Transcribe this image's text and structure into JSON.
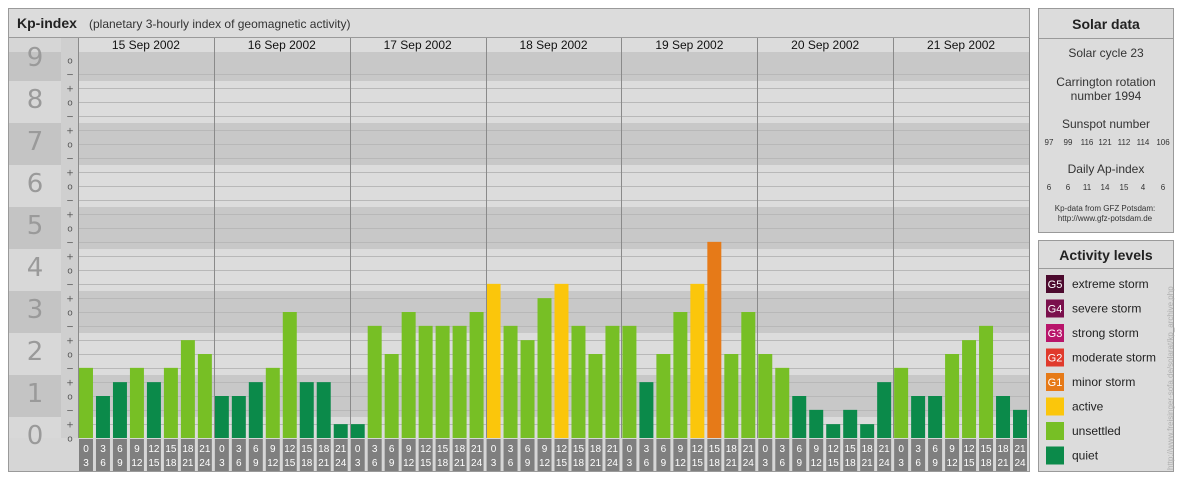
{
  "title": "Kp-index",
  "subtitle": "(planetary 3-hourly index of geomagnetic activity)",
  "credit": "http://www.freisinger-sofa.de/solarat/kp_archive.php",
  "colors": {
    "quiet": "#0b8a4a",
    "unsettled": "#77bf25",
    "active": "#fbc60b",
    "minor": "#e67a18",
    "moderate": "#e03a2c",
    "strong": "#b8146a",
    "severe": "#7a0f4c",
    "extreme": "#4c0a2e"
  },
  "chart_data": {
    "type": "bar",
    "title": "Kp-index",
    "subtitle": "(planetary 3-hourly index of geomagnetic activity)",
    "ylim": [
      0,
      9
    ],
    "y_ticks": [
      "0",
      "1",
      "2",
      "3",
      "4",
      "5",
      "6",
      "7",
      "8",
      "9"
    ],
    "sub_ticks": [
      "+",
      "o",
      "−"
    ],
    "hour_labels_top": [
      "0",
      "3",
      "6",
      "9",
      "12",
      "15",
      "18",
      "21"
    ],
    "hour_labels_bottom": [
      "3",
      "6",
      "9",
      "12",
      "15",
      "18",
      "21",
      "24"
    ],
    "days": [
      {
        "date": "15 Sep 2002",
        "values": [
          1.67,
          1.0,
          1.33,
          1.67,
          1.33,
          1.67,
          2.33,
          2.0
        ]
      },
      {
        "date": "16 Sep 2002",
        "values": [
          1.0,
          1.0,
          1.33,
          1.67,
          3.0,
          1.33,
          1.33,
          0.33
        ]
      },
      {
        "date": "17 Sep 2002",
        "values": [
          0.33,
          2.67,
          2.0,
          3.0,
          2.67,
          2.67,
          2.67,
          3.0
        ]
      },
      {
        "date": "18 Sep 2002",
        "values": [
          3.67,
          2.67,
          2.33,
          3.33,
          3.67,
          2.67,
          2.0,
          2.67
        ]
      },
      {
        "date": "19 Sep 2002",
        "values": [
          2.67,
          1.33,
          2.0,
          3.0,
          3.67,
          4.67,
          2.0,
          3.0
        ]
      },
      {
        "date": "20 Sep 2002",
        "values": [
          2.0,
          1.67,
          1.0,
          0.67,
          0.33,
          0.67,
          0.33,
          1.33
        ]
      },
      {
        "date": "21 Sep 2002",
        "values": [
          1.67,
          1.0,
          1.0,
          2.0,
          2.33,
          2.67,
          1.0,
          0.67
        ]
      }
    ]
  },
  "solar": {
    "title": "Solar data",
    "cycle": "Solar cycle 23",
    "carrington_1": "Carrington rotation",
    "carrington_2": "number 1994",
    "sunspot_title": "Sunspot number",
    "sunspot_values": [
      "97",
      "99",
      "116",
      "121",
      "112",
      "114",
      "106"
    ],
    "ap_title": "Daily Ap-index",
    "ap_values": [
      "6",
      "6",
      "11",
      "14",
      "15",
      "4",
      "6"
    ],
    "source_1": "Kp-data from GFZ Potsdam:",
    "source_2": "http://www.gfz-potsdam.de"
  },
  "legend": {
    "title": "Activity levels",
    "items": [
      {
        "badge": "G5",
        "label": "extreme storm",
        "color": "#4c0a2e"
      },
      {
        "badge": "G4",
        "label": "severe storm",
        "color": "#7a0f4c"
      },
      {
        "badge": "G3",
        "label": "strong storm",
        "color": "#b8146a"
      },
      {
        "badge": "G2",
        "label": "moderate storm",
        "color": "#e03a2c"
      },
      {
        "badge": "G1",
        "label": "minor storm",
        "color": "#e67a18"
      },
      {
        "badge": "",
        "label": "active",
        "color": "#fbc60b"
      },
      {
        "badge": "",
        "label": "unsettled",
        "color": "#77bf25"
      },
      {
        "badge": "",
        "label": "quiet",
        "color": "#0b8a4a"
      }
    ]
  }
}
